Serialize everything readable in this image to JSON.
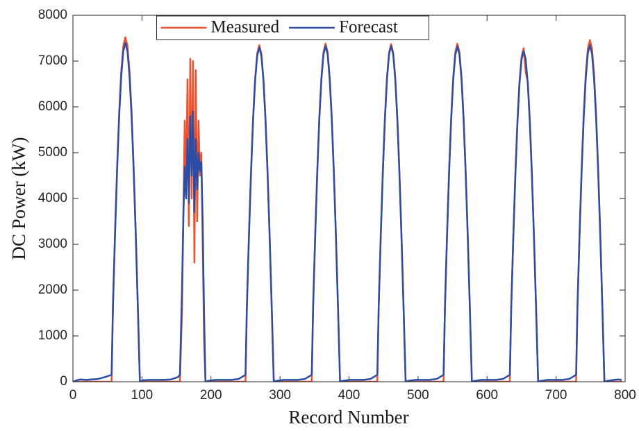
{
  "chart_data": {
    "type": "line",
    "xlabel": "Record Number",
    "ylabel": "DC Power (kW)",
    "xlim": [
      0,
      800
    ],
    "xticks": [
      0,
      100,
      200,
      300,
      400,
      500,
      600,
      700,
      800
    ],
    "ylim": [
      0,
      8000
    ],
    "yticks": [
      0,
      1000,
      2000,
      3000,
      4000,
      5000,
      6000,
      7000,
      8000
    ],
    "grid": false,
    "legend": "upper center",
    "x": [
      0,
      10,
      20,
      36,
      46,
      56,
      58,
      61,
      64,
      67,
      70,
      73,
      76,
      79,
      82,
      85,
      88,
      91,
      94,
      97,
      101,
      111,
      132,
      142,
      152,
      155,
      158,
      160,
      162,
      164,
      166,
      168,
      170,
      172,
      174,
      176,
      178,
      180,
      182,
      184,
      186,
      188,
      190,
      192,
      196,
      206,
      230,
      240,
      250,
      252,
      255,
      258,
      261,
      264,
      267,
      270,
      273,
      276,
      279,
      282,
      285,
      288,
      291,
      295,
      305,
      326,
      336,
      346,
      348,
      351,
      354,
      357,
      360,
      363,
      366,
      369,
      372,
      375,
      378,
      381,
      384,
      387,
      391,
      401,
      421,
      431,
      441,
      443,
      446,
      449,
      452,
      455,
      458,
      461,
      464,
      467,
      470,
      473,
      476,
      479,
      482,
      486,
      496,
      517,
      527,
      537,
      539,
      542,
      545,
      548,
      551,
      554,
      557,
      560,
      563,
      566,
      569,
      572,
      575,
      578,
      582,
      592,
      613,
      623,
      633,
      635,
      638,
      641,
      644,
      647,
      650,
      653,
      656,
      659,
      662,
      665,
      668,
      671,
      674,
      678,
      688,
      709,
      719,
      729,
      731,
      734,
      737,
      740,
      743,
      746,
      749,
      752,
      755,
      758,
      761,
      764,
      767,
      770,
      774,
      784,
      790,
      795
    ],
    "series": [
      {
        "name": "Measured",
        "color": "#f0502c",
        "values": [
          0,
          0,
          0,
          0,
          0,
          0,
          1677,
          3264,
          4685,
          5881,
          6776,
          7332,
          7520,
          7332,
          6776,
          5881,
          4685,
          3264,
          1677,
          0,
          0,
          0,
          0,
          0,
          0,
          0,
          1500,
          3700,
          5700,
          4300,
          6600,
          3400,
          7050,
          4000,
          7000,
          2600,
          6800,
          3500,
          5700,
          4500,
          5000,
          3000,
          900,
          0,
          0,
          0,
          0,
          0,
          0,
          1639,
          3190,
          4579,
          5748,
          6622,
          7166,
          7350,
          7166,
          6622,
          5748,
          4579,
          3190,
          1639,
          0,
          0,
          0,
          0,
          0,
          0,
          1646,
          3203,
          4598,
          5771,
          6649,
          7196,
          7380,
          7196,
          6649,
          5771,
          4598,
          3203,
          1646,
          0,
          0,
          0,
          0,
          0,
          0,
          1644,
          3199,
          4592,
          5763,
          6640,
          7186,
          7370,
          7186,
          6640,
          5763,
          4592,
          3199,
          1644,
          0,
          0,
          0,
          0,
          0,
          0,
          1646,
          3203,
          4598,
          5771,
          6649,
          7196,
          7380,
          7196,
          6649,
          5771,
          4598,
          3203,
          1646,
          0,
          0,
          0,
          0,
          0,
          0,
          1623,
          3160,
          4535,
          5693,
          6559,
          7098,
          7280,
          6750,
          6559,
          5693,
          4535,
          3160,
          1623,
          0,
          0,
          0,
          0,
          0,
          0,
          1664,
          3238,
          4648,
          5834,
          6722,
          7274,
          7460,
          7274,
          6722,
          5834,
          4648,
          3238,
          1664,
          0,
          0,
          0,
          0,
          0
        ]
      },
      {
        "name": "Forecast",
        "color": "#2a4da5",
        "values": [
          0,
          50,
          40,
          60,
          100,
          150,
          1650,
          3212,
          4610,
          5787,
          6667,
          7215,
          7400,
          7215,
          6667,
          5787,
          4610,
          3212,
          1650,
          0,
          30,
          40,
          40,
          50,
          100,
          150,
          2000,
          3600,
          4700,
          4000,
          5300,
          3900,
          5800,
          4500,
          5900,
          3700,
          5300,
          4200,
          5000,
          4600,
          4800,
          3500,
          1500,
          0,
          20,
          40,
          40,
          60,
          150,
          1628,
          3168,
          4548,
          5709,
          6577,
          7118,
          7300,
          7118,
          6577,
          5709,
          4548,
          3168,
          1628,
          0,
          20,
          40,
          40,
          60,
          150,
          1635,
          3181,
          4567,
          5732,
          6604,
          7147,
          7330,
          7147,
          6604,
          5732,
          4567,
          3181,
          1635,
          0,
          20,
          40,
          40,
          60,
          150,
          1635,
          3181,
          4567,
          5732,
          6604,
          7147,
          7330,
          7147,
          6604,
          5732,
          4567,
          3181,
          1635,
          0,
          20,
          40,
          40,
          60,
          150,
          1632,
          3177,
          4560,
          5724,
          6595,
          7137,
          7320,
          7137,
          6595,
          5724,
          4560,
          3177,
          1632,
          0,
          20,
          40,
          40,
          60,
          150,
          1610,
          3133,
          4498,
          5646,
          6505,
          7040,
          7220,
          7040,
          6505,
          5646,
          4498,
          3133,
          1610,
          0,
          20,
          40,
          40,
          60,
          150,
          1639,
          3190,
          4579,
          5748,
          6622,
          7166,
          7350,
          7166,
          6622,
          5748,
          4579,
          3190,
          1639,
          0,
          20,
          40,
          50,
          40
        ]
      }
    ]
  }
}
